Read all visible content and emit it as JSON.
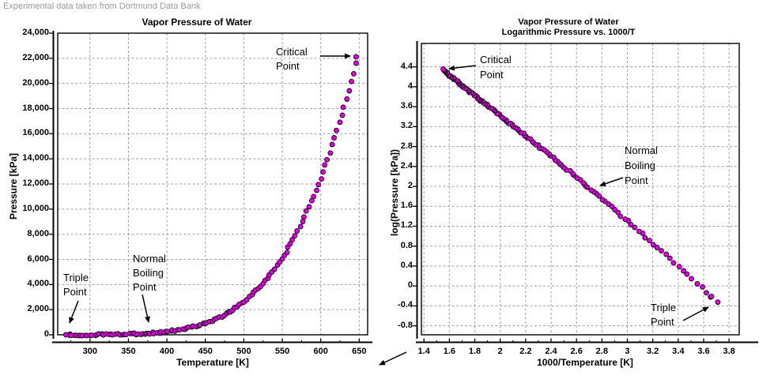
{
  "page": {
    "note": "Experimental data taken from Dortmund Data Bank"
  },
  "chart_data": [
    {
      "type": "scatter",
      "title": "Vapor Pressure of Water",
      "xlabel": "Temperature [K]",
      "ylabel": "Pressure [kPa]",
      "xlim": [
        258,
        661
      ],
      "ylim": [
        0,
        24000
      ],
      "grid": true,
      "legend": "none",
      "marker": {
        "shape": "circle",
        "color": "#DE00DE",
        "edge": "#1A001A"
      },
      "x_tick_values": [
        300,
        350,
        400,
        450,
        500,
        550,
        600,
        650
      ],
      "x_tick_labels": [
        "300",
        "350",
        "400",
        "450",
        "500",
        "550",
        "600",
        "650"
      ],
      "y_tick_values": [
        0,
        2000,
        4000,
        6000,
        8000,
        10000,
        12000,
        14000,
        16000,
        18000,
        20000,
        22000,
        24000
      ],
      "y_tick_labels": [
        "0",
        "2,000",
        "4,000",
        "6,000",
        "8,000",
        "10,000",
        "12,000",
        "14,000",
        "16,000",
        "18,000",
        "20,000",
        "22,000",
        "24,000"
      ],
      "annotations": [
        {
          "id": "critical-point",
          "lines": [
            "Critical",
            "Point"
          ]
        },
        {
          "id": "normal-boiling-point",
          "lines": [
            "Normal",
            "Boiling",
            "Point"
          ]
        },
        {
          "id": "triple-point",
          "lines": [
            "Triple",
            "Point"
          ]
        }
      ],
      "points_format": "[temperature_K, pressure_kPa]",
      "points": [
        [
          270,
          0.48
        ],
        [
          273,
          0.6
        ],
        [
          273.16,
          0.61
        ],
        [
          276,
          0.74
        ],
        [
          279,
          0.92
        ],
        [
          282,
          1.13
        ],
        [
          285,
          1.38
        ],
        [
          288,
          1.68
        ],
        [
          291,
          2.04
        ],
        [
          294,
          2.46
        ],
        [
          297,
          2.95
        ],
        [
          300,
          3.52
        ],
        [
          303,
          4.2
        ],
        [
          306,
          4.98
        ],
        [
          309,
          5.88
        ],
        [
          312,
          6.92
        ],
        [
          315,
          8.12
        ],
        [
          318,
          9.49
        ],
        [
          321,
          11.05
        ],
        [
          324,
          12.84
        ],
        [
          327,
          14.86
        ],
        [
          330,
          17.15
        ],
        [
          333,
          19.74
        ],
        [
          336,
          22.65
        ],
        [
          339,
          25.92
        ],
        [
          342,
          29.58
        ],
        [
          345,
          33.67
        ],
        [
          348,
          38.24
        ],
        [
          351,
          43.3
        ],
        [
          354,
          48.94
        ],
        [
          357,
          55.17
        ],
        [
          360,
          62.04
        ],
        [
          363,
          69.64
        ],
        [
          366,
          77.98
        ],
        [
          369,
          87.18
        ],
        [
          372,
          97.23
        ],
        [
          373.15,
          101.33
        ],
        [
          375,
          108.2
        ],
        [
          378,
          120.3
        ],
        [
          381,
          133.4
        ],
        [
          384,
          147.7
        ],
        [
          387,
          163.2
        ],
        [
          390,
          180.1
        ],
        [
          393,
          198.3
        ],
        [
          396,
          218.1
        ],
        [
          399,
          239.5
        ],
        [
          402,
          262.5
        ],
        [
          405,
          287.4
        ],
        [
          408,
          314.1
        ],
        [
          411,
          342.8
        ],
        [
          414,
          373.5
        ],
        [
          417,
          406.6
        ],
        [
          420,
          441.9
        ],
        [
          423,
          479.6
        ],
        [
          426,
          520
        ],
        [
          429,
          562.9
        ],
        [
          432,
          608.9
        ],
        [
          435,
          657.6
        ],
        [
          438,
          702.6
        ],
        [
          441,
          755
        ],
        [
          444,
          810.9
        ],
        [
          447,
          869.6
        ],
        [
          450,
          931.8
        ],
        [
          453,
          997.5
        ],
        [
          456,
          1067
        ],
        [
          459,
          1141
        ],
        [
          462,
          1218
        ],
        [
          465,
          1300
        ],
        [
          468,
          1386
        ],
        [
          471,
          1476
        ],
        [
          474,
          1571
        ],
        [
          477,
          1671
        ],
        [
          480,
          1776
        ],
        [
          483,
          1886
        ],
        [
          486,
          2002
        ],
        [
          489,
          2123
        ],
        [
          492,
          2250
        ],
        [
          495,
          2383
        ],
        [
          498,
          2523
        ],
        [
          501,
          2668
        ],
        [
          504,
          2820
        ],
        [
          507,
          2979
        ],
        [
          510,
          3144
        ],
        [
          513,
          3317
        ],
        [
          516,
          3497
        ],
        [
          519,
          3685
        ],
        [
          522,
          3881
        ],
        [
          525,
          4084
        ],
        [
          528,
          4296
        ],
        [
          531,
          4517
        ],
        [
          534,
          4745
        ],
        [
          537,
          4983
        ],
        [
          540,
          5230
        ],
        [
          543,
          5487
        ],
        [
          546,
          5753
        ],
        [
          549,
          6029
        ],
        [
          552,
          6315
        ],
        [
          555,
          6612
        ],
        [
          558,
          6919
        ],
        [
          561,
          7238
        ],
        [
          564,
          7567
        ],
        [
          567,
          7908
        ],
        [
          570,
          8261
        ],
        [
          573,
          8626
        ],
        [
          576,
          9003
        ],
        [
          579,
          9392
        ],
        [
          582,
          9794
        ],
        [
          585,
          10200
        ],
        [
          588,
          10620
        ],
        [
          591,
          11060
        ],
        [
          594,
          11520
        ],
        [
          597,
          11980
        ],
        [
          600,
          12470
        ],
        [
          603,
          12960
        ],
        [
          606,
          13470
        ],
        [
          609,
          13990
        ],
        [
          612,
          14530
        ],
        [
          615,
          15090
        ],
        [
          618,
          15660
        ],
        [
          621,
          16250
        ],
        [
          624,
          16860
        ],
        [
          627,
          17480
        ],
        [
          630,
          18110
        ],
        [
          633,
          18760
        ],
        [
          636,
          19430
        ],
        [
          639,
          20120
        ],
        [
          642,
          20830
        ],
        [
          645,
          21550
        ],
        [
          647.1,
          22064
        ]
      ]
    },
    {
      "type": "scatter",
      "title": "Vapor Pressure of Water",
      "subtitle": "Logarithmic Pressure vs. 1000/T",
      "xlabel": "1000/Temperature [K]",
      "ylabel": "log(Pressure [kPa])",
      "xlim": [
        1.38,
        3.88
      ],
      "ylim": [
        -0.98,
        4.87
      ],
      "grid": true,
      "legend": "none",
      "marker": {
        "shape": "circle",
        "color": "#DE00DE",
        "edge": "#1A001A"
      },
      "x_tick_values": [
        1.4,
        1.6,
        1.8,
        2,
        2.2,
        2.4,
        2.6,
        2.8,
        3,
        3.2,
        3.4,
        3.6,
        3.8
      ],
      "x_tick_labels": [
        "1.4",
        "1.6",
        "1.8",
        "2",
        "2.2",
        "2.4",
        "2.6",
        "2.8",
        "3",
        "3.2",
        "3.4",
        "3.6",
        "3.8"
      ],
      "y_tick_values": [
        -0.8,
        -0.4,
        0,
        0.4,
        0.8,
        1.2,
        1.6,
        2,
        2.4,
        2.8,
        3.2,
        3.6,
        4,
        4.4
      ],
      "y_tick_labels": [
        "-0.8",
        "-0.4",
        "0",
        "0.4",
        "0.8",
        "1.2",
        "1.6",
        "2",
        "2.4",
        "2.8",
        "3.2",
        "3.6",
        "4",
        "4.4"
      ],
      "derived_from": "x = 1000/T, y = log10(P) computed from chart 1 points",
      "annotations": [
        {
          "id": "critical-point",
          "lines": [
            "Critical",
            "Point"
          ]
        },
        {
          "id": "normal-boiling-point",
          "lines": [
            "Normal",
            "Boiling",
            "Point"
          ]
        },
        {
          "id": "triple-point",
          "lines": [
            "Triple",
            "Point"
          ]
        }
      ]
    }
  ]
}
